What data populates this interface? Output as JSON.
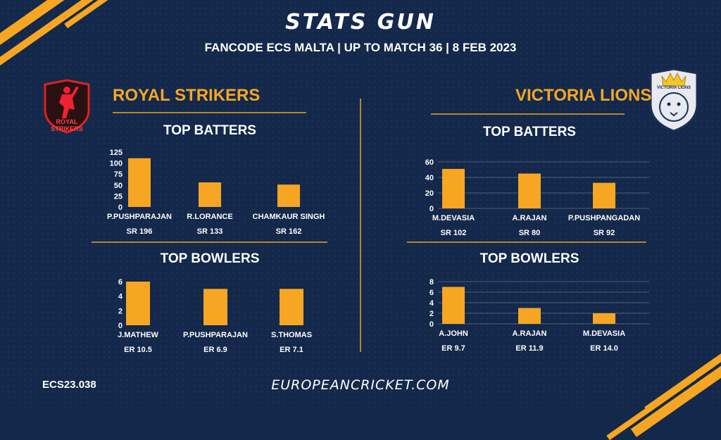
{
  "header": {
    "title": "STATS GUN",
    "subtitle": "FANCODE ECS MALTA  | UP TO MATCH  36 | 8 FEB 2023"
  },
  "teams": {
    "left": {
      "name": "ROYAL STRIKERS",
      "logo_text": "ROYAL STRIKERS"
    },
    "right": {
      "name": "VICTORIA LIONS",
      "logo_text": "VICTORIA LIONS"
    }
  },
  "sections": {
    "batters": "TOP BATTERS",
    "bowlers": "TOP BOWLERS"
  },
  "footer": {
    "code": "ECS23.038",
    "site": "EUROPEANCRICKET.COM"
  },
  "colors": {
    "bg": "#13284a",
    "accent": "#f6a623",
    "line": "#b8862a"
  },
  "chart_data": [
    {
      "id": "rs-batters",
      "type": "bar",
      "title": "TOP BATTERS",
      "categories": [
        "P.PUSHPARAJAN",
        "R.LORANCE",
        "CHAMKAUR SINGH"
      ],
      "values": [
        111,
        56,
        51
      ],
      "sublabels": [
        "SR 196",
        "SR 133",
        "SR 162"
      ],
      "ylim": [
        0,
        125
      ],
      "yticks": [
        0,
        25,
        50,
        75,
        100,
        125
      ],
      "grid": false
    },
    {
      "id": "rs-bowlers",
      "type": "bar",
      "title": "TOP BOWLERS",
      "categories": [
        "J.MATHEW",
        "P.PUSHPARAJAN",
        "S.THOMAS"
      ],
      "values": [
        6,
        5,
        5
      ],
      "sublabels": [
        "ER 10.5",
        "ER 6.9",
        "ER 7.1"
      ],
      "ylim": [
        0,
        6
      ],
      "yticks": [
        0,
        2,
        4,
        6
      ],
      "grid": false
    },
    {
      "id": "vl-batters",
      "type": "bar",
      "title": "TOP BATTERS",
      "categories": [
        "M.DEVASIA",
        "A.RAJAN",
        "P.PUSHPANGADAN"
      ],
      "values": [
        51,
        45,
        33
      ],
      "sublabels": [
        "SR 102",
        "SR 80",
        "SR 92"
      ],
      "ylim": [
        0,
        60
      ],
      "yticks": [
        0,
        20,
        40,
        60
      ],
      "grid": true
    },
    {
      "id": "vl-bowlers",
      "type": "bar",
      "title": "TOP BOWLERS",
      "categories": [
        "A.JOHN",
        "A.RAJAN",
        "M.DEVASIA"
      ],
      "values": [
        7,
        3,
        2
      ],
      "sublabels": [
        "ER 9.7",
        "ER 11.9",
        "ER 14.0"
      ],
      "ylim": [
        0,
        8
      ],
      "yticks": [
        0,
        2,
        4,
        6,
        8
      ],
      "grid": true
    }
  ]
}
